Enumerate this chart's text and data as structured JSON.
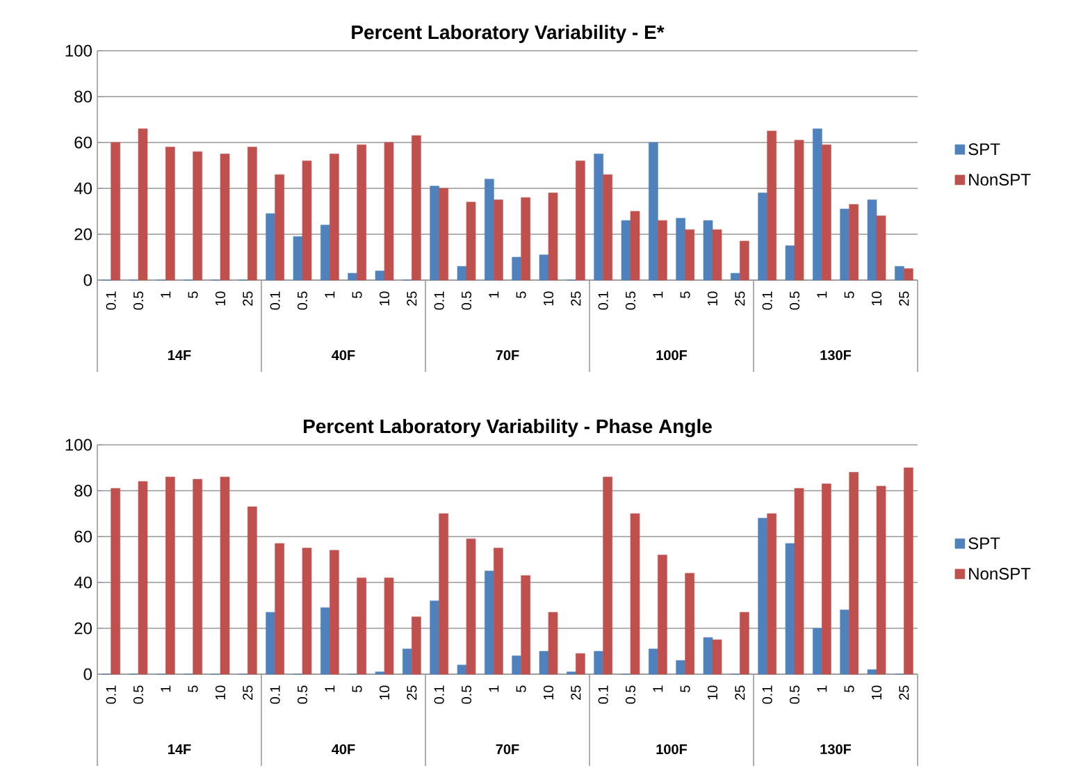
{
  "chart_data": [
    {
      "type": "bar",
      "title": "Percent Laboratory Variability - E*",
      "categories": [
        "0.1",
        "0.5",
        "1",
        "5",
        "10",
        "25",
        "0.1",
        "0.5",
        "1",
        "5",
        "10",
        "25",
        "0.1",
        "0.5",
        "1",
        "5",
        "10",
        "25",
        "0.1",
        "0.5",
        "1",
        "5",
        "10",
        "25",
        "0.1",
        "0.5",
        "1",
        "5",
        "10",
        "25"
      ],
      "series": [
        {
          "name": "SPT",
          "color": "#4f81bd",
          "values": [
            0,
            0,
            0,
            0,
            0,
            0,
            29,
            19,
            24,
            3,
            4,
            0,
            41,
            6,
            44,
            10,
            11,
            0,
            55,
            26,
            60,
            27,
            26,
            3,
            38,
            15,
            66,
            31,
            35,
            6
          ]
        },
        {
          "name": "NonSPT",
          "color": "#c0504d",
          "values": [
            60,
            66,
            58,
            56,
            55,
            58,
            46,
            52,
            55,
            59,
            60,
            63,
            40,
            34,
            35,
            36,
            38,
            52,
            46,
            30,
            26,
            22,
            22,
            17,
            65,
            61,
            59,
            33,
            28,
            5
          ]
        }
      ],
      "annotations": [
        "14F",
        "40F",
        "70F",
        "100F",
        "130F"
      ],
      "ylim": [
        0,
        100
      ],
      "yticks": [
        0,
        20,
        40,
        60,
        80,
        100
      ],
      "grid": "y",
      "legend": "right"
    },
    {
      "type": "bar",
      "title": "Percent Laboratory Variability - Phase Angle",
      "categories": [
        "0.1",
        "0.5",
        "1",
        "5",
        "10",
        "25",
        "0.1",
        "0.5",
        "1",
        "5",
        "10",
        "25",
        "0.1",
        "0.5",
        "1",
        "5",
        "10",
        "25",
        "0.1",
        "0.5",
        "1",
        "5",
        "10",
        "25",
        "0.1",
        "0.5",
        "1",
        "5",
        "10",
        "25"
      ],
      "series": [
        {
          "name": "SPT",
          "color": "#4f81bd",
          "values": [
            0,
            0,
            0,
            0,
            0,
            0,
            27,
            0,
            29,
            0,
            1,
            11,
            32,
            4,
            45,
            8,
            10,
            1,
            10,
            0,
            11,
            6,
            16,
            0,
            68,
            57,
            20,
            28,
            2,
            0
          ]
        },
        {
          "name": "NonSPT",
          "color": "#c0504d",
          "values": [
            81,
            84,
            86,
            85,
            86,
            73,
            57,
            55,
            54,
            42,
            42,
            25,
            70,
            59,
            55,
            43,
            27,
            9,
            86,
            70,
            52,
            44,
            15,
            27,
            70,
            81,
            83,
            88,
            82,
            90
          ]
        }
      ],
      "annotations": [
        "14F",
        "40F",
        "70F",
        "100F",
        "130F"
      ],
      "ylim": [
        0,
        100
      ],
      "yticks": [
        0,
        20,
        40,
        60,
        80,
        100
      ],
      "grid": "y",
      "legend": "right"
    }
  ]
}
